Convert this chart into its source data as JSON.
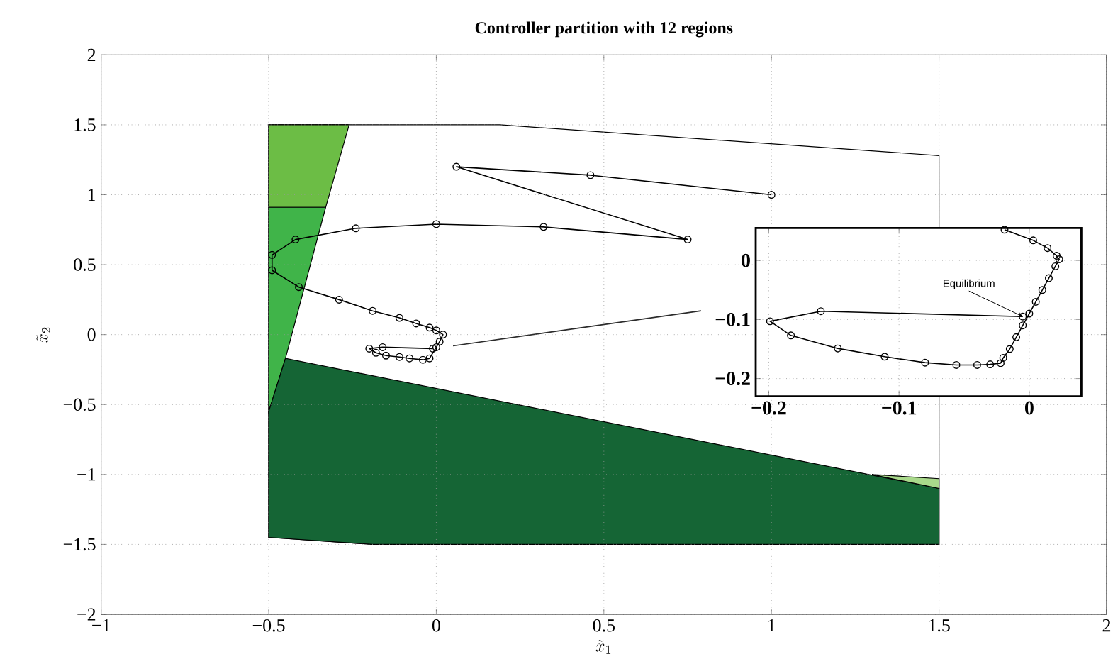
{
  "chart_data": [
    {
      "type": "line",
      "title": "Controller partition with 12 regions",
      "xlabel": "\\tilde{x}_1",
      "ylabel": "\\tilde{x}_2",
      "xlim": [
        -1,
        2
      ],
      "ylim": [
        -2,
        2
      ],
      "xticks": [
        {
          "value": -1,
          "label": "−1"
        },
        {
          "value": -0.5,
          "label": "−0.5"
        },
        0,
        0.5,
        1,
        1.5,
        2
      ],
      "yticks": [
        {
          "value": -2,
          "label": "−2"
        },
        {
          "value": -1.5,
          "label": "−1.5"
        },
        {
          "value": -1,
          "label": "−1"
        },
        {
          "value": -0.5,
          "label": "−0.5"
        },
        0,
        0.5,
        1,
        1.5,
        2
      ],
      "grid": true,
      "series": [
        {
          "type": "area",
          "color": "#ffffff",
          "x": [
            -0.5,
            0.19,
            1.5,
            1.5,
            -0.19,
            -0.5
          ],
          "values": [
            1.5,
            1.5,
            1.28,
            -1.5,
            -1.5,
            -1.45
          ]
        },
        {
          "type": "area",
          "color": "#6cbd45",
          "x": [
            -0.5,
            -0.26,
            -0.33,
            -0.5
          ],
          "values": [
            1.5,
            1.5,
            0.91,
            0.91
          ]
        },
        {
          "type": "area",
          "color": "#40b449",
          "x": [
            -0.5,
            -0.33,
            -0.45,
            -0.5
          ],
          "values": [
            0.91,
            0.91,
            -0.17,
            -0.55
          ]
        },
        {
          "type": "area",
          "color": "#156535",
          "x": [
            -0.45,
            1.5,
            1.5,
            -0.19,
            -0.5,
            -0.5
          ],
          "values": [
            -0.17,
            -1.1,
            -1.5,
            -1.5,
            -1.45,
            -0.55
          ]
        },
        {
          "type": "area",
          "color": "#a9d98b",
          "x": [
            1.3,
            1.5,
            1.5
          ],
          "values": [
            -1.0,
            -1.03,
            -1.1
          ]
        },
        {
          "type": "line",
          "color": "#2b2b2b",
          "marker": "none",
          "x": [
            0.05,
            0.79
          ],
          "values": [
            -0.08,
            0.17
          ]
        },
        {
          "type": "line",
          "color": "#000000",
          "marker": "circle",
          "x": [
            1.0,
            0.46,
            0.06,
            0.75,
            0.32,
            0.0,
            -0.24,
            -0.42,
            -0.49,
            -0.49,
            -0.41,
            -0.29,
            -0.19,
            -0.11,
            -0.06,
            -0.02,
            0.0,
            0.02,
            0.01,
            0.0,
            -0.02,
            -0.04,
            -0.08,
            -0.11,
            -0.15,
            -0.18,
            -0.2,
            -0.16,
            -0.01
          ],
          "values": [
            1.0,
            1.14,
            1.2,
            0.68,
            0.77,
            0.79,
            0.76,
            0.68,
            0.57,
            0.46,
            0.34,
            0.25,
            0.17,
            0.12,
            0.08,
            0.05,
            0.03,
            0.0,
            -0.05,
            -0.09,
            -0.17,
            -0.18,
            -0.17,
            -0.16,
            -0.15,
            -0.13,
            -0.1,
            -0.09,
            -0.1
          ]
        }
      ]
    },
    {
      "type": "line",
      "xlim": [
        -0.21,
        0.04
      ],
      "ylim": [
        -0.23,
        0.055
      ],
      "xticks": [
        {
          "value": -0.2,
          "label": "−0.2"
        },
        {
          "value": -0.1,
          "label": "−0.1"
        },
        0
      ],
      "yticks": [
        {
          "value": -0.2,
          "label": "−0.2"
        },
        {
          "value": -0.1,
          "label": "−0.1"
        },
        0
      ],
      "grid": true,
      "annotations": [
        {
          "text": "Equilibrium",
          "x": -0.005,
          "y": -0.095
        }
      ],
      "series": [
        {
          "type": "line",
          "color": "#000000",
          "marker": "circle",
          "x": [
            -0.019,
            0.003,
            0.014,
            0.021,
            0.023,
            0.02,
            0.015,
            0.01,
            0.005,
            0.0,
            -0.005,
            -0.01,
            -0.015,
            -0.02,
            -0.022,
            -0.03,
            -0.04,
            -0.056,
            -0.08,
            -0.111,
            -0.147,
            -0.183,
            -0.199,
            -0.16,
            -0.005
          ],
          "values": [
            0.052,
            0.034,
            0.021,
            0.008,
            0.002,
            -0.01,
            -0.03,
            -0.05,
            -0.07,
            -0.09,
            -0.11,
            -0.13,
            -0.15,
            -0.165,
            -0.174,
            -0.176,
            -0.177,
            -0.177,
            -0.173,
            -0.163,
            -0.149,
            -0.127,
            -0.103,
            -0.086,
            -0.095
          ]
        }
      ]
    }
  ]
}
